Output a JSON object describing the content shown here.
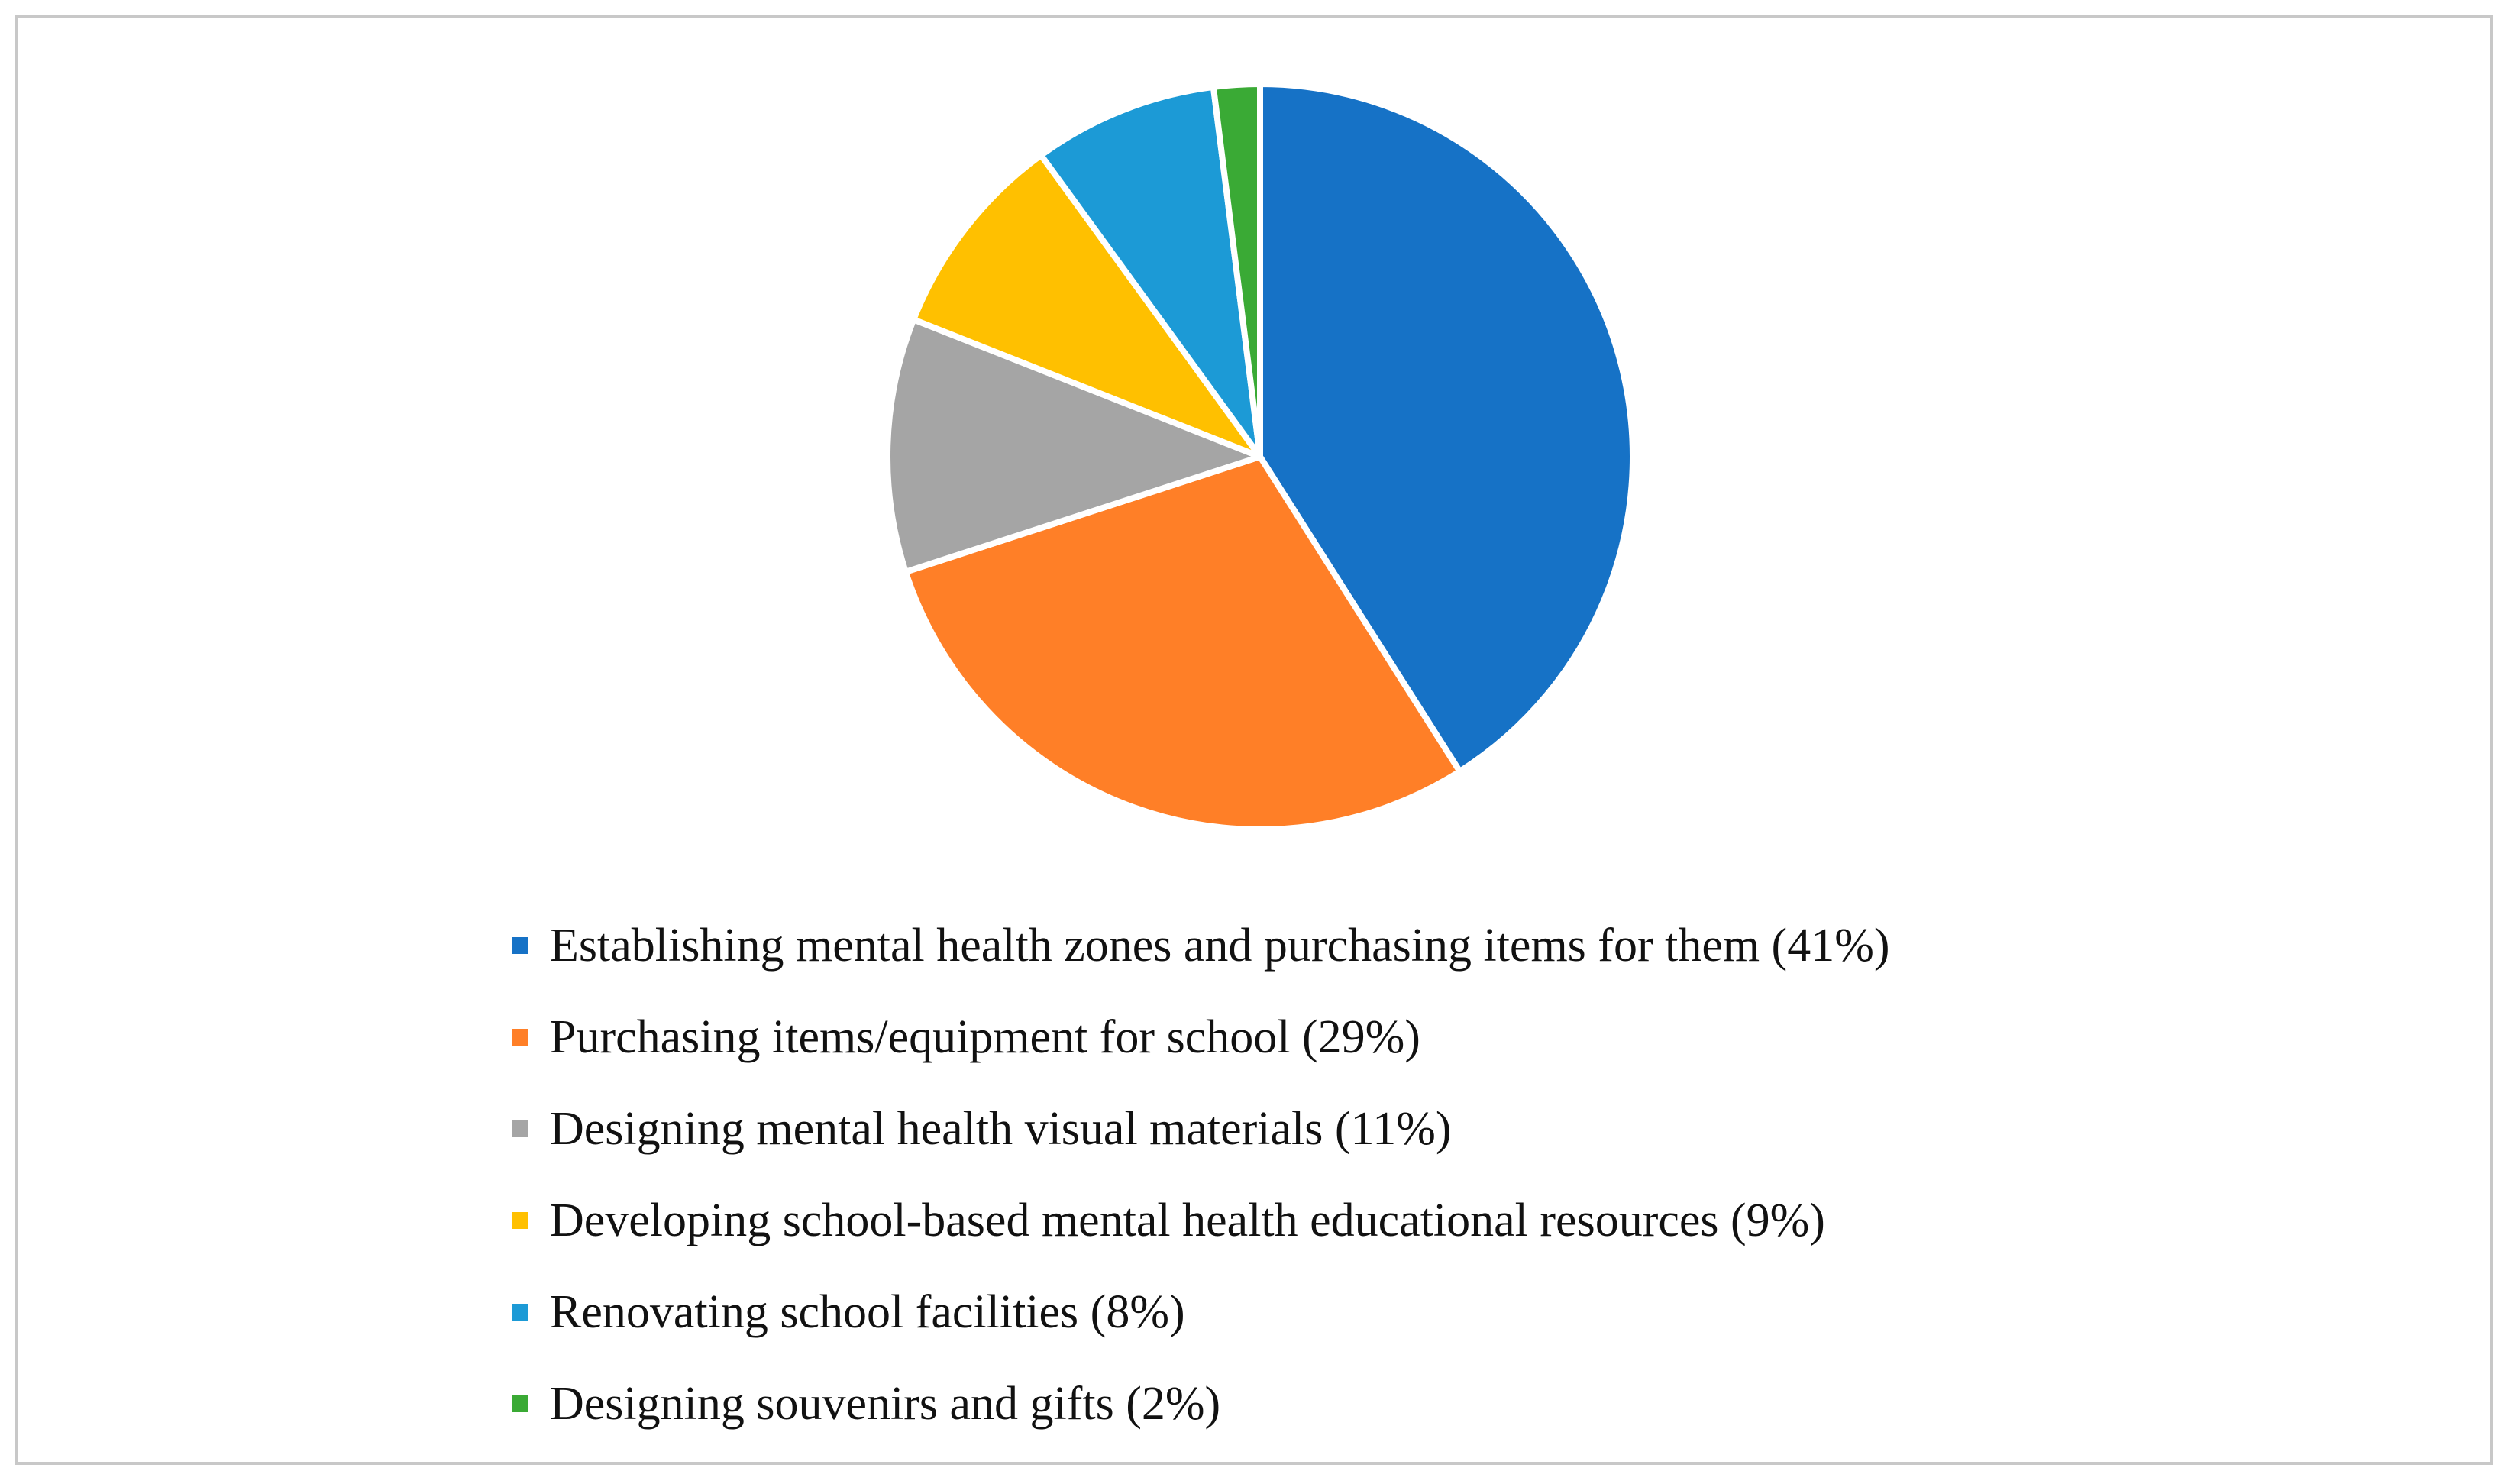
{
  "chart_data": {
    "type": "pie",
    "title": "",
    "start_angle_deg": 0,
    "direction": "clockwise",
    "legend_position": "bottom",
    "slices": [
      {
        "label": "Establishing mental health zones and purchasing items for them (41%)",
        "value": 41,
        "color": "#1672C6"
      },
      {
        "label": "Purchasing items/equipment for school (29%)",
        "value": 29,
        "color": "#FF7F27"
      },
      {
        "label": "Designing mental health visual materials (11%)",
        "value": 11,
        "color": "#A5A5A5"
      },
      {
        "label": "Developing school-based mental health educational resources (9%)",
        "value": 9,
        "color": "#FFC000"
      },
      {
        "label": "Renovating school facilities (8%)",
        "value": 8,
        "color": "#1C9AD6"
      },
      {
        "label": "Designing souvenirs and gifts (2%)",
        "value": 2,
        "color": "#3AAA35"
      }
    ]
  }
}
